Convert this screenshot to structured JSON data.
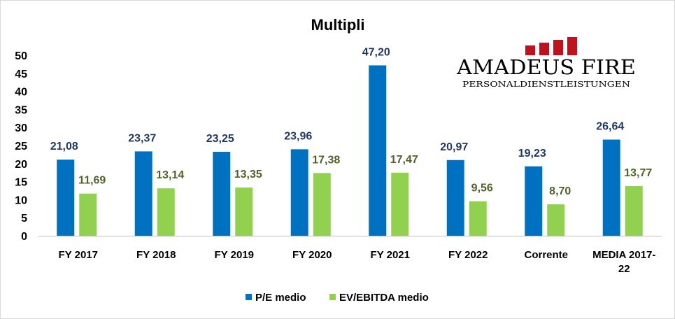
{
  "logo": {
    "name": "AMADEUS FIRE",
    "tagline": "PERSONALDIENSTLEISTUNGEN",
    "color": "#c0121e"
  },
  "chart_data": {
    "type": "bar",
    "title": "Multipli",
    "xlabel": "",
    "ylabel": "",
    "ylim": [
      0,
      50
    ],
    "yticks": [
      0,
      5,
      10,
      15,
      20,
      25,
      30,
      35,
      40,
      45,
      50
    ],
    "categories": [
      [
        "FY 2017"
      ],
      [
        "FY 2018"
      ],
      [
        "FY 2019"
      ],
      [
        "FY 2020"
      ],
      [
        "FY 2021"
      ],
      [
        "FY 2022"
      ],
      [
        "Corrente"
      ],
      [
        "MEDIA 2017-",
        "22"
      ]
    ],
    "series": [
      {
        "name": "P/E medio",
        "color": "#0070c0",
        "label_color": "#1f3864",
        "values": [
          21.08,
          23.37,
          23.25,
          23.96,
          47.2,
          20.97,
          19.23,
          26.64
        ],
        "labels": [
          "21,08",
          "23,37",
          "23,25",
          "23,96",
          "47,20",
          "20,97",
          "19,23",
          "26,64"
        ]
      },
      {
        "name": "EV/EBITDA medio",
        "color": "#92d050",
        "label_color": "#4f6228",
        "values": [
          11.69,
          13.14,
          13.35,
          17.38,
          17.47,
          9.56,
          8.7,
          13.77
        ],
        "labels": [
          "11,69",
          "13,14",
          "13,35",
          "17,38",
          "17,47",
          "9,56",
          "8,70",
          "13,77"
        ]
      }
    ],
    "legend": "bottom",
    "grid": false
  }
}
